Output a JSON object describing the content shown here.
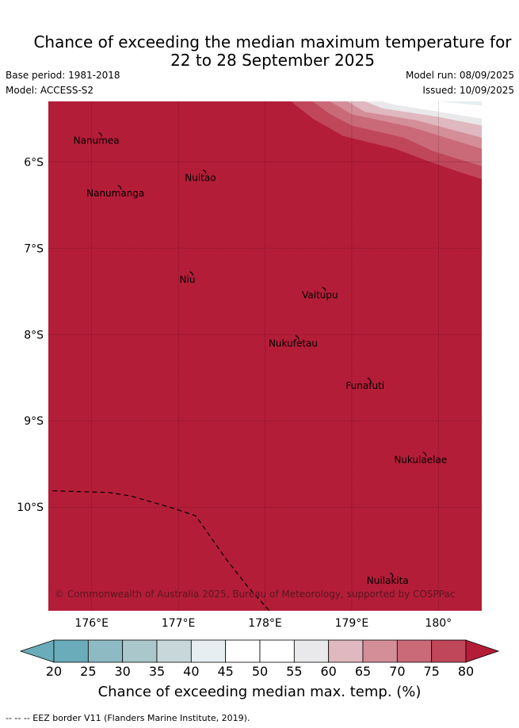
{
  "title": {
    "line1": "Chance of exceeding the median maximum temperature for",
    "line2": "22 to 28 September 2025"
  },
  "meta": {
    "base_period": "Base period: 1981-2018",
    "model": "Model: ACCESS-S2",
    "model_run": "Model run: 08/09/2025",
    "issued": "Issued: 10/09/2025"
  },
  "map": {
    "fill_color": "#b41d38",
    "lon_range": [
      175.5,
      180.5
    ],
    "lat_range": [
      -11.2,
      -5.3
    ],
    "lon_ticks": [
      {
        "value": 176,
        "label": "176°E"
      },
      {
        "value": 177,
        "label": "177°E"
      },
      {
        "value": 178,
        "label": "178°E"
      },
      {
        "value": 179,
        "label": "179°E"
      },
      {
        "value": 180,
        "label": "180°"
      }
    ],
    "lat_ticks": [
      {
        "value": -6,
        "label": "6°S"
      },
      {
        "value": -7,
        "label": "7°S"
      },
      {
        "value": -8,
        "label": "8°S"
      },
      {
        "value": -9,
        "label": "9°S"
      },
      {
        "value": -10,
        "label": "10°S"
      }
    ],
    "islands": [
      {
        "name": "Nanumea",
        "lon": 176.1,
        "lat": -5.68
      },
      {
        "name": "Nuitao",
        "lon": 177.3,
        "lat": -6.11
      },
      {
        "name": "Nanumanga",
        "lon": 176.32,
        "lat": -6.29
      },
      {
        "name": "Niu",
        "lon": 177.15,
        "lat": -7.29
      },
      {
        "name": "Vaitupu",
        "lon": 178.68,
        "lat": -7.47
      },
      {
        "name": "Nukufetau",
        "lon": 178.37,
        "lat": -8.03
      },
      {
        "name": "Funafuti",
        "lon": 179.2,
        "lat": -8.52
      },
      {
        "name": "Nukulaelae",
        "lon": 179.84,
        "lat": -9.38
      },
      {
        "name": "Nuilakita",
        "lon": 179.46,
        "lat": -10.78
      }
    ],
    "eez_border": [
      [
        175.55,
        -9.81
      ],
      [
        175.85,
        -9.82
      ],
      [
        176.2,
        -9.83
      ],
      [
        176.45,
        -9.87
      ],
      [
        176.9,
        -10.0
      ],
      [
        177.2,
        -10.1
      ],
      [
        177.55,
        -10.6
      ],
      [
        177.8,
        -10.92
      ],
      [
        178.05,
        -11.2
      ]
    ],
    "contour_bands": [
      {
        "probability": 75,
        "color": "#c0465a",
        "edge": [
          [
            178.3,
            -5.3
          ],
          [
            178.55,
            -5.5
          ],
          [
            178.9,
            -5.7
          ],
          [
            179.5,
            -5.85
          ],
          [
            179.9,
            -6.0
          ],
          [
            180.25,
            -6.12
          ],
          [
            180.5,
            -6.2
          ]
        ]
      },
      {
        "probability": 70,
        "color": "#ca6a79",
        "edge": [
          [
            178.55,
            -5.3
          ],
          [
            178.75,
            -5.45
          ],
          [
            179.0,
            -5.58
          ],
          [
            179.6,
            -5.72
          ],
          [
            179.95,
            -5.88
          ],
          [
            180.5,
            -6.05
          ]
        ]
      },
      {
        "probability": 65,
        "color": "#d48e98",
        "edge": [
          [
            178.75,
            -5.3
          ],
          [
            179.0,
            -5.45
          ],
          [
            179.7,
            -5.6
          ],
          [
            180.5,
            -5.85
          ]
        ]
      },
      {
        "probability": 60,
        "color": "#e0b8bf",
        "edge": [
          [
            178.95,
            -5.3
          ],
          [
            179.15,
            -5.42
          ],
          [
            179.75,
            -5.52
          ],
          [
            180.5,
            -5.72
          ]
        ]
      },
      {
        "probability": 55,
        "color": "#e9e8ea",
        "edge": [
          [
            179.15,
            -5.3
          ],
          [
            179.35,
            -5.38
          ],
          [
            180.0,
            -5.48
          ],
          [
            180.5,
            -5.58
          ]
        ]
      },
      {
        "probability": 50,
        "color": "#ffffff",
        "edge": [
          [
            179.35,
            -5.3
          ],
          [
            179.5,
            -5.34
          ],
          [
            180.0,
            -5.42
          ],
          [
            180.5,
            -5.5
          ]
        ]
      },
      {
        "probability": 45,
        "color": "#e7eef1",
        "edge": [
          [
            180.0,
            -5.3
          ],
          [
            180.2,
            -5.32
          ],
          [
            180.5,
            -5.35
          ]
        ]
      }
    ],
    "copyright": "© Commonwealth of Australia 2025, Bureau of Meteorology, supported by COSPPac"
  },
  "colorbar": {
    "ticks": [
      "20",
      "25",
      "30",
      "35",
      "40",
      "45",
      "50",
      "55",
      "60",
      "65",
      "70",
      "75",
      "80"
    ],
    "colors": [
      "#6aacb9",
      "#8ebac4",
      "#aac7cb",
      "#c8d8da",
      "#e7eef1",
      "#ffffff",
      "#ffffff",
      "#e9e8ea",
      "#e0b8bf",
      "#d48e98",
      "#ca6a79",
      "#c0465a"
    ],
    "low_color": "#6aacb9",
    "high_color": "#b41d38",
    "label": "Chance of exceeding median max. temp. (%)"
  },
  "legend": {
    "eez": "--  --  -- EEZ border V11 (Flanders Marine Institute, 2019)."
  }
}
